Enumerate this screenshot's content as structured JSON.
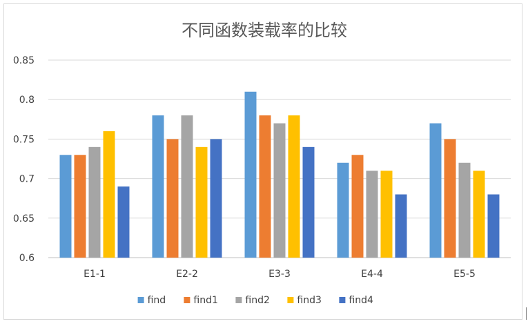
{
  "chart_data": {
    "type": "bar",
    "title": "不同函数装载率的比较",
    "categories": [
      "E1-1",
      "E2-2",
      "E3-3",
      "E4-4",
      "E5-5"
    ],
    "series": [
      {
        "name": "find",
        "color": "#5b9bd5",
        "values": [
          0.73,
          0.78,
          0.81,
          0.72,
          0.77
        ]
      },
      {
        "name": "find1",
        "color": "#ed7d31",
        "values": [
          0.73,
          0.75,
          0.78,
          0.73,
          0.75
        ]
      },
      {
        "name": "find2",
        "color": "#a5a5a5",
        "values": [
          0.74,
          0.78,
          0.77,
          0.71,
          0.72
        ]
      },
      {
        "name": "find3",
        "color": "#ffc000",
        "values": [
          0.76,
          0.74,
          0.78,
          0.71,
          0.71
        ]
      },
      {
        "name": "find4",
        "color": "#4472c4",
        "values": [
          0.69,
          0.75,
          0.74,
          0.68,
          0.68
        ]
      }
    ],
    "ylim": [
      0.6,
      0.85
    ],
    "yticks": [
      "0.6",
      "0.65",
      "0.7",
      "0.75",
      "0.8",
      "0.85"
    ],
    "grid": true,
    "legend": "bottom"
  }
}
